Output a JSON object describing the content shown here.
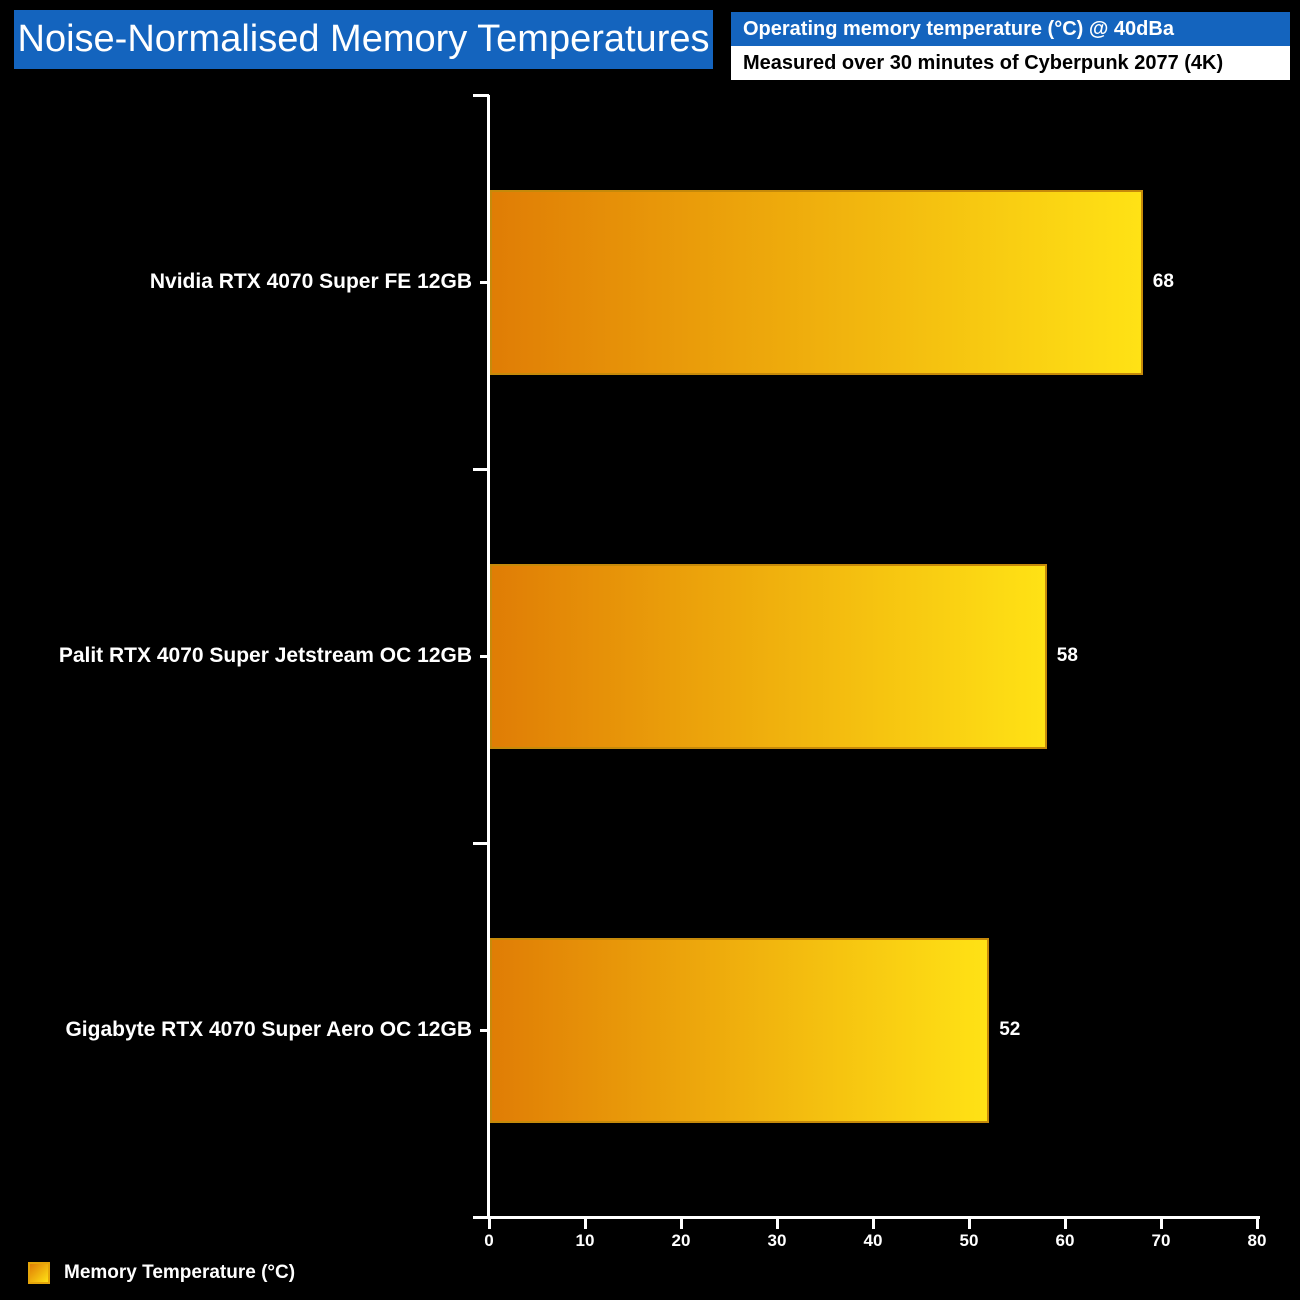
{
  "title": "Noise-Normalised Memory Temperatures",
  "header": {
    "line1": "Operating memory temperature (°C) @ 40dBa",
    "line2": "Measured over 30 minutes of Cyberpunk 2077 (4K)"
  },
  "legend": {
    "label": "Memory Temperature (°C)"
  },
  "colors": {
    "background": "#000000",
    "accent_blue": "#1464BE",
    "axis_white": "#FFFFFF",
    "bar_gradient_start": "#E07D05",
    "bar_gradient_end": "#FFE215",
    "bar_border": "#C68A0A",
    "legend_swatch_border": "#E5A50A",
    "text_white": "#FFFFFF"
  },
  "chart_data": {
    "type": "bar",
    "orientation": "horizontal",
    "title": "Noise-Normalised Memory Temperatures",
    "subtitle": "Operating memory temperature (°C) @ 40dBa — Measured over 30 minutes of Cyberpunk 2077 (4K)",
    "categories": [
      "Nvidia RTX 4070 Super FE 12GB",
      "Palit RTX 4070 Super Jetstream OC 12GB",
      "Gigabyte RTX 4070 Super Aero OC 12GB"
    ],
    "series": [
      {
        "name": "Memory Temperature (°C)",
        "values": [
          68,
          58,
          52
        ]
      }
    ],
    "data_labels": [
      "68",
      "58",
      "52"
    ],
    "xlabel": "",
    "ylabel": "",
    "xlim": [
      0,
      80
    ],
    "x_ticks": [
      0,
      10,
      20,
      30,
      40,
      50,
      60,
      70,
      80
    ],
    "grid": false,
    "legend_position": "bottom-left"
  }
}
